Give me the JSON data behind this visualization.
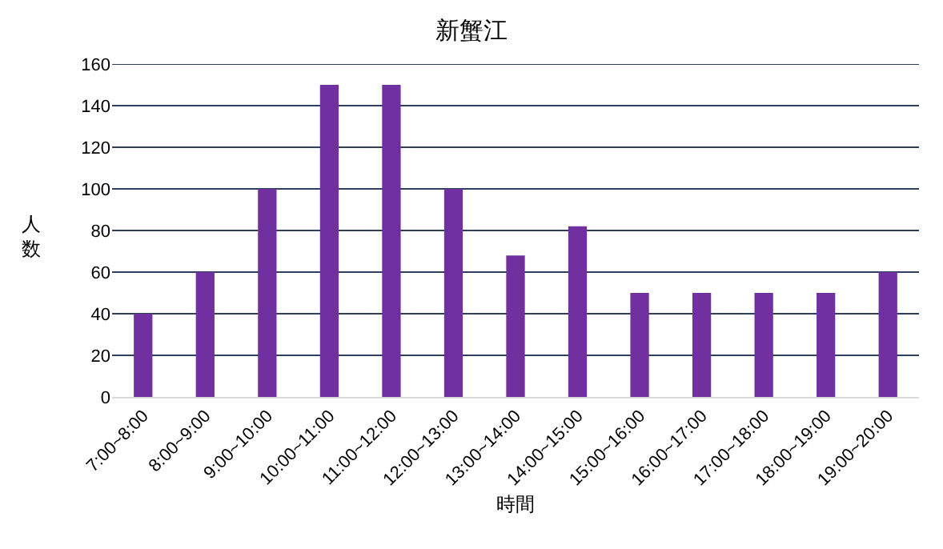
{
  "chart_data": {
    "type": "bar",
    "title": "新蟹江",
    "xlabel": "時間",
    "ylabel": "人数",
    "categories": [
      "7:00~8:00",
      "8:00~9:00",
      "9:00~10:00",
      "10:00~11:00",
      "11:00~12:00",
      "12:00~13:00",
      "13:00~14:00",
      "14:00~15:00",
      "15:00~16:00",
      "16:00~17:00",
      "17:00~18:00",
      "18:00~19:00",
      "19:00~20:00"
    ],
    "values": [
      40,
      60,
      100,
      150,
      150,
      100,
      68,
      82,
      50,
      50,
      50,
      50,
      60
    ],
    "color": "#7030a0",
    "ylim": [
      0,
      160
    ],
    "yticks": [
      0,
      20,
      40,
      60,
      80,
      100,
      120,
      140,
      160
    ],
    "grid": "y"
  }
}
